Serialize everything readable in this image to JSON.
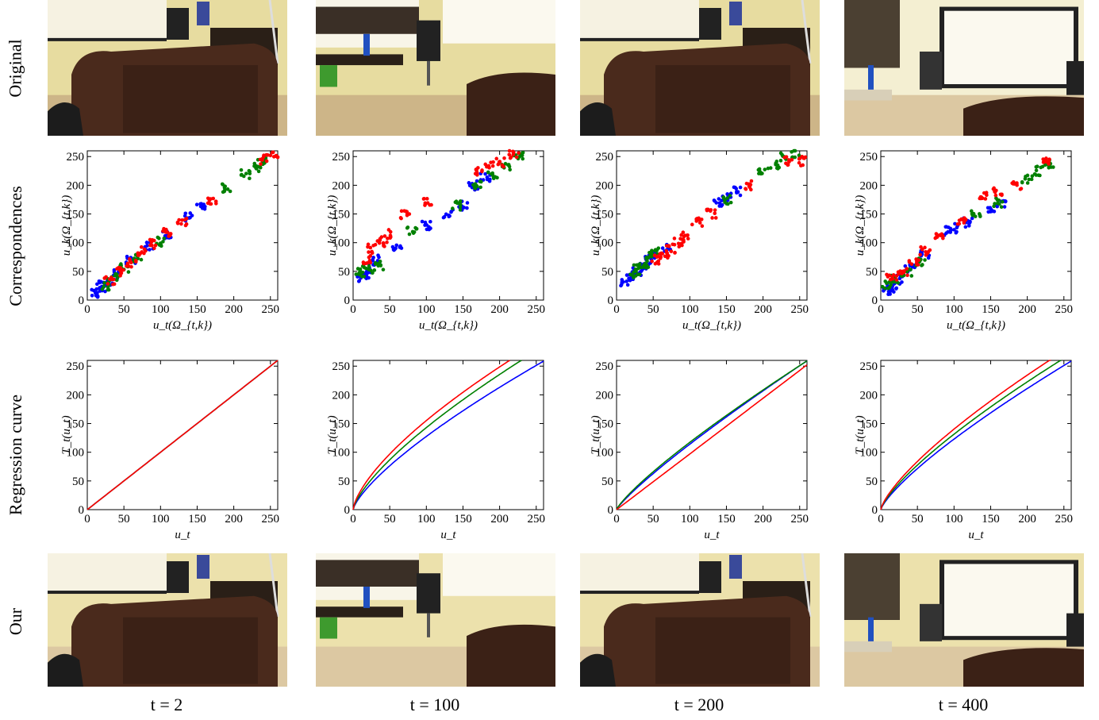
{
  "row_labels": {
    "original": "Original",
    "correspondences": "Correspondences",
    "regression": "Regression curve",
    "ours": "Our"
  },
  "time_labels": [
    "t = 2",
    "t = 100",
    "t = 200",
    "t = 400"
  ],
  "colors": {
    "red": "#ff0000",
    "green": "#008000",
    "blue": "#0000ff"
  },
  "photos": {
    "original": [
      "living-room-sofa-dark",
      "living-room-shelf-screen-dark",
      "living-room-sofa-dark",
      "living-room-screen-bright"
    ],
    "ours": [
      "living-room-sofa-corrected",
      "living-room-shelf-screen-corrected",
      "living-room-sofa-corrected",
      "living-room-screen-corrected"
    ]
  },
  "chart_data": [
    {
      "type": "scatter",
      "panel": "correspondences t = 2",
      "xlabel": "u_t(Ω_{t,k})",
      "ylabel": "u_k(Ω_{t,k})",
      "xlim": [
        0,
        260
      ],
      "ylim": [
        0,
        260
      ],
      "xticks": [
        "0",
        "50",
        "100",
        "150",
        "200",
        "250"
      ],
      "yticks": [
        "0",
        "50",
        "100",
        "150",
        "200",
        "250"
      ],
      "clusters": [
        {
          "color": "blue",
          "points": [
            [
              12,
              12
            ],
            [
              18,
              20
            ],
            [
              22,
              26
            ],
            [
              28,
              32
            ],
            [
              40,
              45
            ],
            [
              60,
              68
            ],
            [
              85,
              95
            ],
            [
              110,
              115
            ],
            [
              140,
              145
            ],
            [
              155,
              160
            ]
          ]
        },
        {
          "color": "green",
          "points": [
            [
              25,
              25
            ],
            [
              35,
              38
            ],
            [
              50,
              55
            ],
            [
              70,
              72
            ],
            [
              100,
              102
            ],
            [
              190,
              195
            ],
            [
              215,
              220
            ],
            [
              230,
              232
            ],
            [
              240,
              242
            ]
          ]
        },
        {
          "color": "red",
          "points": [
            [
              30,
              35
            ],
            [
              45,
              50
            ],
            [
              60,
              65
            ],
            [
              75,
              85
            ],
            [
              90,
              98
            ],
            [
              110,
              118
            ],
            [
              130,
              138
            ],
            [
              170,
              175
            ],
            [
              240,
              245
            ],
            [
              255,
              252
            ]
          ]
        }
      ]
    },
    {
      "type": "scatter",
      "panel": "correspondences t = 100",
      "xlabel": "u_t(Ω_{t,k})",
      "ylabel": "u_k(Ω_{t,k})",
      "xlim": [
        0,
        260
      ],
      "ylim": [
        0,
        260
      ],
      "xticks": [
        "0",
        "50",
        "100",
        "150",
        "200",
        "250"
      ],
      "yticks": [
        "0",
        "50",
        "100",
        "150",
        "200",
        "250"
      ],
      "clusters": [
        {
          "color": "blue",
          "points": [
            [
              12,
              40
            ],
            [
              18,
              45
            ],
            [
              25,
              55
            ],
            [
              30,
              70
            ],
            [
              60,
              90
            ],
            [
              100,
              130
            ],
            [
              130,
              150
            ],
            [
              150,
              165
            ],
            [
              165,
              200
            ],
            [
              180,
              215
            ]
          ]
        },
        {
          "color": "green",
          "points": [
            [
              10,
              48
            ],
            [
              20,
              55
            ],
            [
              35,
              60
            ],
            [
              80,
              120
            ],
            [
              140,
              165
            ],
            [
              170,
              200
            ],
            [
              190,
              215
            ],
            [
              210,
              235
            ],
            [
              225,
              250
            ]
          ]
        },
        {
          "color": "red",
          "points": [
            [
              20,
              70
            ],
            [
              25,
              90
            ],
            [
              40,
              100
            ],
            [
              45,
              115
            ],
            [
              70,
              150
            ],
            [
              100,
              170
            ],
            [
              170,
              225
            ],
            [
              185,
              235
            ],
            [
              200,
              240
            ],
            [
              220,
              255
            ]
          ]
        }
      ]
    },
    {
      "type": "scatter",
      "panel": "correspondences t = 200",
      "xlabel": "u_t(Ω_{t,k})",
      "ylabel": "u_k(Ω_{t,k})",
      "xlim": [
        0,
        260
      ],
      "ylim": [
        0,
        260
      ],
      "xticks": [
        "0",
        "50",
        "100",
        "150",
        "200",
        "250"
      ],
      "yticks": [
        "0",
        "50",
        "100",
        "150",
        "200",
        "250"
      ],
      "clusters": [
        {
          "color": "blue",
          "points": [
            [
              12,
              30
            ],
            [
              20,
              40
            ],
            [
              28,
              50
            ],
            [
              35,
              60
            ],
            [
              42,
              70
            ],
            [
              50,
              80
            ],
            [
              70,
              90
            ],
            [
              140,
              170
            ],
            [
              150,
              180
            ],
            [
              165,
              190
            ]
          ]
        },
        {
          "color": "green",
          "points": [
            [
              25,
              45
            ],
            [
              30,
              55
            ],
            [
              38,
              62
            ],
            [
              45,
              75
            ],
            [
              55,
              85
            ],
            [
              150,
              175
            ],
            [
              200,
              225
            ],
            [
              215,
              235
            ],
            [
              230,
              250
            ],
            [
              245,
              255
            ]
          ]
        },
        {
          "color": "red",
          "points": [
            [
              55,
              70
            ],
            [
              65,
              80
            ],
            [
              75,
              90
            ],
            [
              85,
              100
            ],
            [
              95,
              110
            ],
            [
              110,
              135
            ],
            [
              130,
              150
            ],
            [
              180,
              200
            ],
            [
              235,
              242
            ],
            [
              252,
              242
            ]
          ]
        }
      ]
    },
    {
      "type": "scatter",
      "panel": "correspondences t = 400",
      "xlabel": "u_t(Ω_{t,k})",
      "ylabel": "u_k(Ω_{t,k})",
      "xlim": [
        0,
        260
      ],
      "ylim": [
        0,
        260
      ],
      "xticks": [
        "0",
        "50",
        "100",
        "150",
        "200",
        "250"
      ],
      "yticks": [
        "0",
        "50",
        "100",
        "150",
        "200",
        "250"
      ],
      "clusters": [
        {
          "color": "blue",
          "points": [
            [
              10,
              15
            ],
            [
              15,
              22
            ],
            [
              25,
              35
            ],
            [
              40,
              55
            ],
            [
              60,
              80
            ],
            [
              90,
              120
            ],
            [
              100,
              125
            ],
            [
              120,
              135
            ],
            [
              150,
              160
            ],
            [
              165,
              170
            ]
          ]
        },
        {
          "color": "green",
          "points": [
            [
              8,
              28
            ],
            [
              20,
              35
            ],
            [
              35,
              48
            ],
            [
              55,
              65
            ],
            [
              130,
              150
            ],
            [
              160,
              170
            ],
            [
              200,
              210
            ],
            [
              215,
              225
            ],
            [
              230,
              238
            ]
          ]
        },
        {
          "color": "red",
          "points": [
            [
              15,
              40
            ],
            [
              30,
              50
            ],
            [
              45,
              65
            ],
            [
              60,
              85
            ],
            [
              80,
              110
            ],
            [
              110,
              140
            ],
            [
              140,
              180
            ],
            [
              160,
              190
            ],
            [
              185,
              200
            ],
            [
              225,
              245
            ]
          ]
        }
      ]
    },
    {
      "type": "line",
      "panel": "regression t = 2",
      "xlabel": "u_t",
      "ylabel": "T_t(u_t)",
      "xlim": [
        0,
        260
      ],
      "ylim": [
        0,
        260
      ],
      "xticks": [
        "0",
        "50",
        "100",
        "150",
        "200",
        "250"
      ],
      "yticks": [
        "0",
        "50",
        "100",
        "150",
        "200",
        "250"
      ],
      "series": [
        {
          "color": "blue",
          "a": 1.0,
          "gamma": 1.0
        },
        {
          "color": "green",
          "a": 1.0,
          "gamma": 1.0
        },
        {
          "color": "red",
          "a": 1.0,
          "gamma": 1.0
        }
      ]
    },
    {
      "type": "line",
      "panel": "regression t = 100",
      "xlabel": "u_t",
      "ylabel": "T_t(u_t)",
      "xlim": [
        0,
        260
      ],
      "ylim": [
        0,
        260
      ],
      "xticks": [
        "0",
        "50",
        "100",
        "150",
        "200",
        "250"
      ],
      "yticks": [
        "0",
        "50",
        "100",
        "150",
        "200",
        "250"
      ],
      "series": [
        {
          "color": "blue",
          "a": 1.0,
          "gamma": 0.74
        },
        {
          "color": "green",
          "a": 1.1,
          "gamma": 0.72
        },
        {
          "color": "red",
          "a": 1.15,
          "gamma": 0.68
        }
      ]
    },
    {
      "type": "line",
      "panel": "regression t = 200",
      "xlabel": "u_t",
      "ylabel": "T_t(u_t)",
      "xlim": [
        0,
        260
      ],
      "ylim": [
        0,
        260
      ],
      "xticks": [
        "0",
        "50",
        "100",
        "150",
        "200",
        "250"
      ],
      "yticks": [
        "0",
        "50",
        "100",
        "150",
        "200",
        "250"
      ],
      "series": [
        {
          "color": "blue",
          "a": 1.0,
          "gamma": 0.86
        },
        {
          "color": "green",
          "a": 1.0,
          "gamma": 0.83
        },
        {
          "color": "red",
          "a": 0.97,
          "gamma": 1.0
        }
      ]
    },
    {
      "type": "line",
      "panel": "regression t = 400",
      "xlabel": "u_t",
      "ylabel": "T_t(u_t)",
      "xlim": [
        0,
        260
      ],
      "ylim": [
        0,
        260
      ],
      "xticks": [
        "0",
        "50",
        "100",
        "150",
        "200",
        "250"
      ],
      "yticks": [
        "0",
        "50",
        "100",
        "150",
        "200",
        "250"
      ],
      "series": [
        {
          "color": "blue",
          "a": 1.0,
          "gamma": 0.78
        },
        {
          "color": "green",
          "a": 1.05,
          "gamma": 0.76
        },
        {
          "color": "red",
          "a": 1.1,
          "gamma": 0.74
        }
      ]
    }
  ]
}
